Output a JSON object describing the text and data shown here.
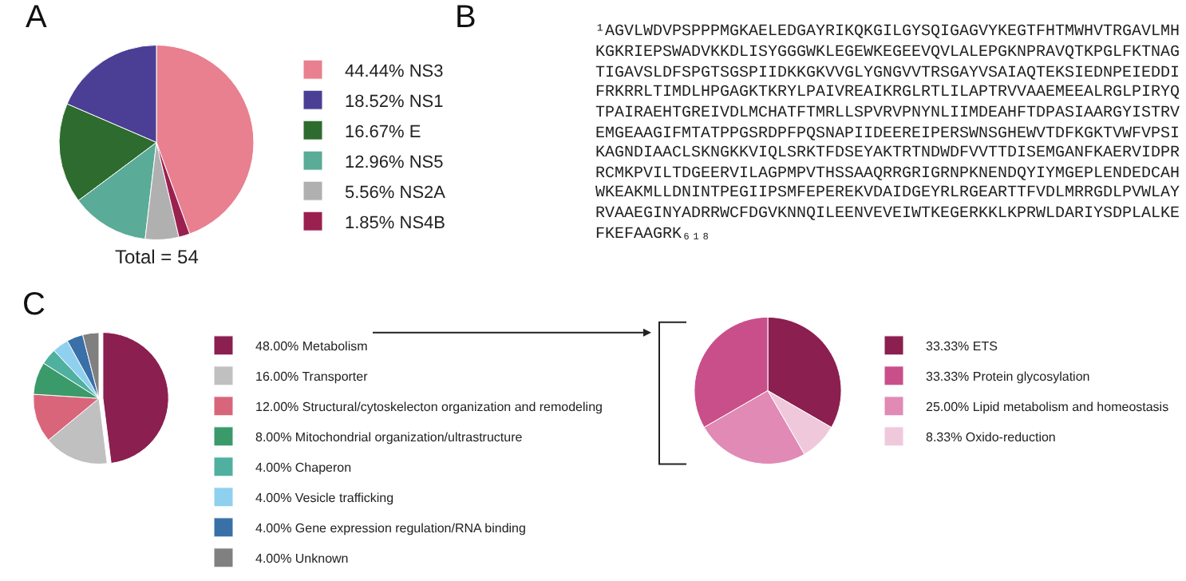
{
  "chart_data": [
    {
      "type": "pie",
      "annotations": [
        "A",
        "Total = 54"
      ],
      "categories": [
        "NS3",
        "NS1",
        "E",
        "NS5",
        "NS2A",
        "NS4B"
      ],
      "values": [
        44.44,
        18.52,
        16.67,
        12.96,
        5.56,
        1.85
      ],
      "value_labels": [
        "44.44%",
        "18.52%",
        "16.67%",
        "12.96%",
        "5.56%",
        "1.85%"
      ],
      "colors": [
        "#e8808f",
        "#4a3f94",
        "#2e6b2e",
        "#5aab98",
        "#b0b0b0",
        "#9a2050"
      ],
      "legend": "right"
    },
    {
      "type": "other",
      "annotations": [
        "B",
        "¹AGVLWDVPSPPPMGKAELEDGAYRIKQKGILGYSQIGAGVYKEGTFHTMWHVTRGAVLMH",
        "KGKRIEPSWADVKKDLISYGGGWKLEGEWKEGEEVQVLALEPGKNPRAVQTKPGLFKTNAG",
        "TIGAVSLDFSPGTSGSPIIDKKGKVVGLYGNGVVTRSGAYVSAIAQTEKSIEDNPEIEDDI",
        "FRKRRLTIMDLHPGAGKTKRYLPAIVREAIKRGLRTLILAPTRVVAAEMEEALRGLPIRYQ",
        "TPAIRAEHTGREIVDLMCHATFTMRLLSPVRVPNYNLIIMDEAHFTDPASIAARGYISTRV",
        "EMGEAAGIFMTATPPGSRDPFPQSNAPIIDEEREIPERSWNSGHEWVTDFKGKTVWFVPSI",
        "KAGNDIAACLSKNGKKVIQLSRKTFDSEYAKTRTNDWDFVVTTDISEMGANFKAERVIDPR",
        "RCMKPVILTDGEERVILAGPMPVTHSSAAQRRGRIGRNPKNENDQYIYMGEPLENDEDCAH",
        "WKEAKMLLDNINTPEGIIPSMFEPEREKVDAIDGEYRLRGEARTTFVDLMRRGDLPVWLAY",
        "RVAAEGINYADRRWCFDGVKNNQILEENVEVEIWTKEGERKKLKPRWLDARIYSDPLALKE",
        "FKEFAAGRK₆₁₈"
      ]
    },
    {
      "type": "pie",
      "annotations": [
        "C"
      ],
      "categories": [
        "Metabolism",
        "Transporter",
        "Structural/cytoskelecton organization and remodeling",
        "Mitochondrial organization/ultrastructure",
        "Chaperon",
        "Vesicle trafficking",
        "Gene expression regulation/RNA binding",
        "Unknown"
      ],
      "values": [
        48,
        16,
        12,
        8,
        4,
        4,
        4,
        4
      ],
      "value_labels": [
        "48.00%",
        "16.00%",
        "12.00%",
        "8.00%",
        "4.00%",
        "4.00%",
        "4.00%",
        "4.00%"
      ],
      "colors": [
        "#8b1f4f",
        "#c0c0c0",
        "#d9657a",
        "#3a9a6a",
        "#4fb0a0",
        "#8fd0ef",
        "#3a70a8",
        "#808080"
      ],
      "legend": "right"
    },
    {
      "type": "pie",
      "categories": [
        "ETS",
        "Protein glycosylation",
        "Lipid metabolism and homeostasis",
        "Oxido-reduction"
      ],
      "values": [
        33.33,
        33.33,
        25.0,
        8.33
      ],
      "value_labels": [
        "33.33%",
        "33.33%",
        "25.00%",
        "8.33%"
      ],
      "colors": [
        "#8b1f4f",
        "#c94f8a",
        "#e08ab5",
        "#f0c8dc"
      ],
      "legend": "right"
    }
  ]
}
